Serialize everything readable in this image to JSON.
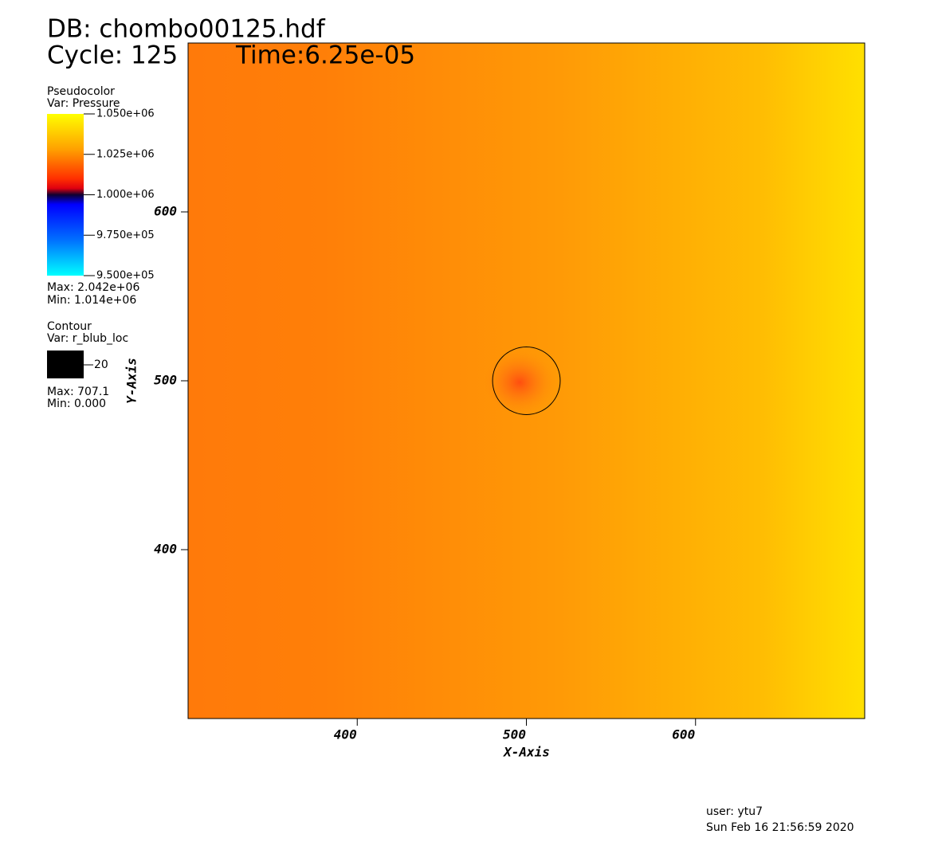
{
  "chart_data": {
    "type": "pseudocolor",
    "title": "DB: chombo00125.hdf",
    "cycle": "Cycle: 125",
    "time": "Time:6.25e-05",
    "x_label": "X-Axis",
    "y_label": "Y-Axis",
    "xlim": [
      300,
      700
    ],
    "ylim": [
      300,
      700
    ],
    "xticks": [
      400,
      500,
      600
    ],
    "yticks": [
      400,
      500,
      600
    ],
    "legend": {
      "title": "Pseudocolor",
      "var": "Var: Pressure",
      "clim": [
        950000,
        1050000
      ],
      "ticks": [
        {
          "value": 1050000,
          "label": "1.050e+06"
        },
        {
          "value": 1025000,
          "label": "1.025e+06"
        },
        {
          "value": 1000000,
          "label": "1.000e+06"
        },
        {
          "value": 975000,
          "label": "9.750e+05"
        },
        {
          "value": 950000,
          "label": "9.500e+05"
        }
      ],
      "max": "Max: 2.042e+06",
      "min": "Min:  1.014e+06"
    },
    "contour": {
      "title": "Contour",
      "var": "Var: r_blub_loc",
      "levels": [
        20
      ],
      "max": "Max: 707.1",
      "min": "Min: 0.000"
    },
    "user": "user: ytu7",
    "date": "Sun Feb 16 21:56:59 2020"
  }
}
